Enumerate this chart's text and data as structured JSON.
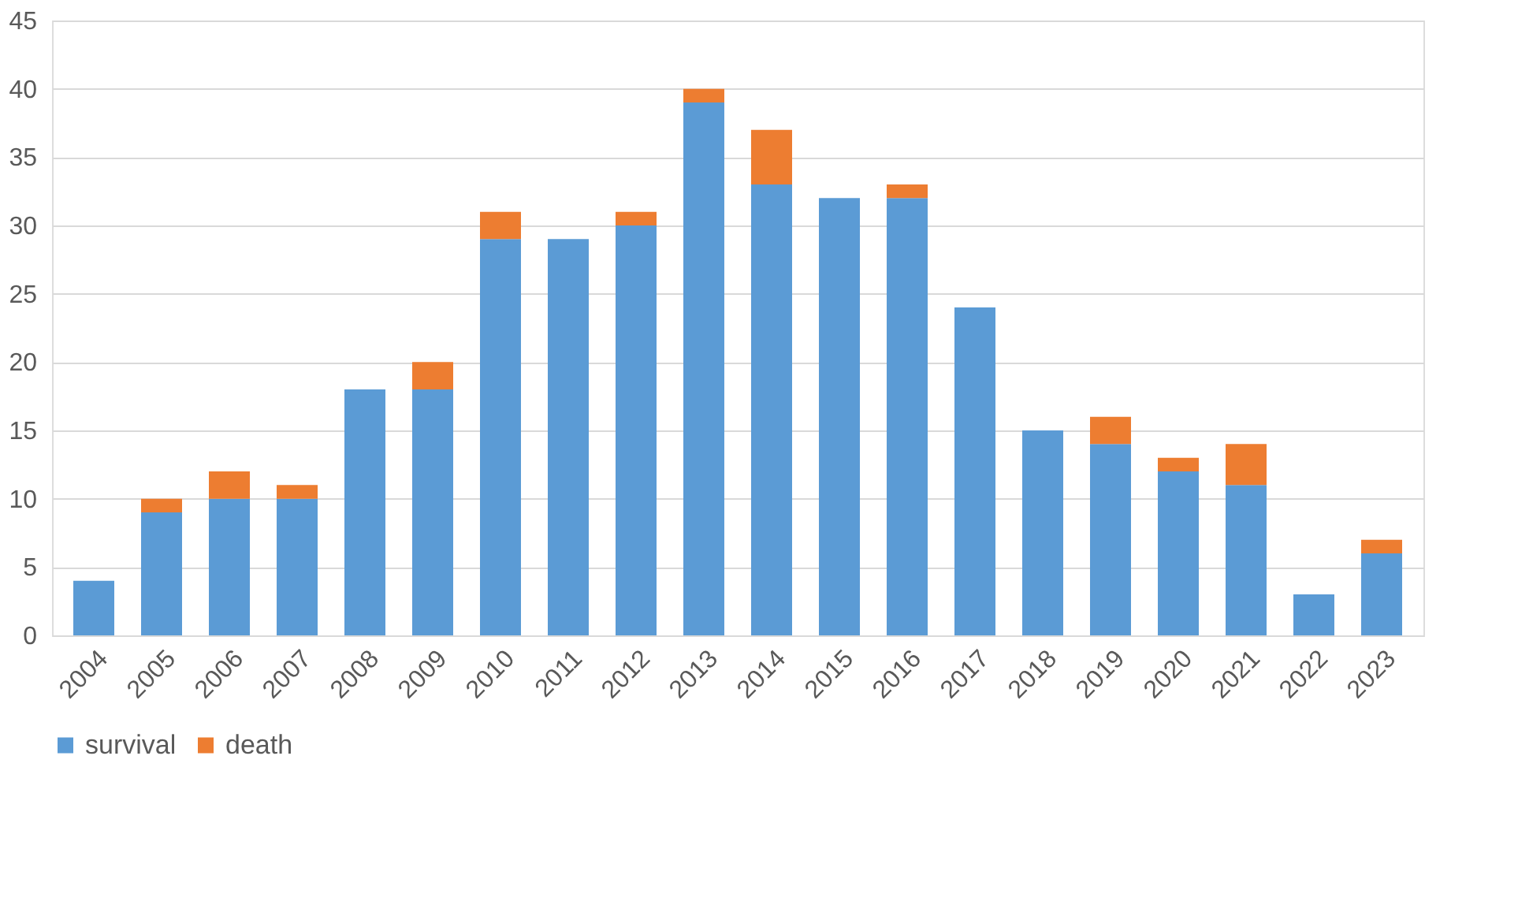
{
  "chart_data": {
    "type": "bar",
    "stacked": true,
    "categories": [
      "2004",
      "2005",
      "2006",
      "2007",
      "2008",
      "2009",
      "2010",
      "2011",
      "2012",
      "2013",
      "2014",
      "2015",
      "2016",
      "2017",
      "2018",
      "2019",
      "2020",
      "2021",
      "2022",
      "2023"
    ],
    "series": [
      {
        "name": "survival",
        "color": "#5b9bd5",
        "values": [
          4,
          9,
          10,
          10,
          18,
          18,
          29,
          29,
          30,
          39,
          33,
          32,
          32,
          24,
          15,
          14,
          12,
          11,
          3,
          6
        ]
      },
      {
        "name": "death",
        "color": "#ed7d31",
        "values": [
          0,
          1,
          2,
          1,
          0,
          2,
          2,
          0,
          1,
          1,
          4,
          0,
          1,
          0,
          0,
          2,
          1,
          3,
          0,
          1
        ]
      }
    ],
    "ylim": [
      0,
      45
    ],
    "yticks": [
      0,
      5,
      10,
      15,
      20,
      25,
      30,
      35,
      40,
      45
    ],
    "grid": "y",
    "legend": "bottom"
  }
}
